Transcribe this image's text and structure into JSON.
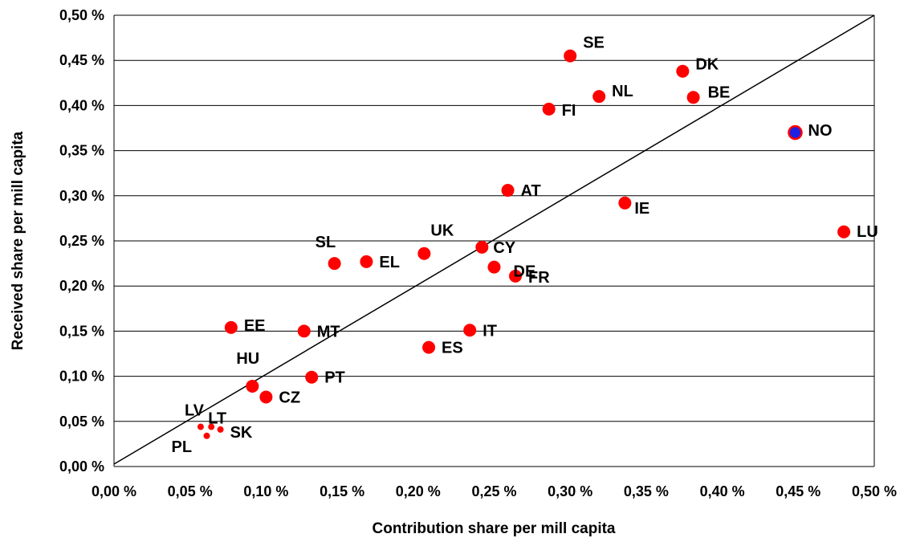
{
  "chart_data": {
    "type": "scatter",
    "title": "",
    "xlabel": "Contribution share per mill capita",
    "ylabel": "Received share per mill capita",
    "xlim": [
      0,
      0.5
    ],
    "ylim": [
      0,
      0.5
    ],
    "x_ticks": [
      "0,00 %",
      "0,05 %",
      "0,10 %",
      "0,15 %",
      "0,20 %",
      "0,25 %",
      "0,30 %",
      "0,35 %",
      "0,40 %",
      "0,45 %",
      "0,50 %"
    ],
    "y_ticks": [
      "0,00 %",
      "0,05 %",
      "0,10 %",
      "0,15 %",
      "0,20 %",
      "0,25 %",
      "0,30 %",
      "0,35 %",
      "0,40 %",
      "0,45 %",
      "0,50 %"
    ],
    "grid": "horizontal",
    "reference_line": {
      "from": [
        0,
        0
      ],
      "to": [
        0.5,
        0.5
      ]
    },
    "colors": {
      "point": "#ff0000",
      "highlight_fill": "#2020e0",
      "highlight_ring": "#ff0000",
      "grid": "#000000"
    },
    "points": [
      {
        "label": "SE",
        "x": 0.3,
        "y": 0.455,
        "size": "large"
      },
      {
        "label": "DK",
        "x": 0.374,
        "y": 0.438,
        "size": "large"
      },
      {
        "label": "NL",
        "x": 0.319,
        "y": 0.41,
        "size": "large"
      },
      {
        "label": "BE",
        "x": 0.381,
        "y": 0.409,
        "size": "large"
      },
      {
        "label": "FI",
        "x": 0.286,
        "y": 0.396,
        "size": "large"
      },
      {
        "label": "NO",
        "x": 0.448,
        "y": 0.37,
        "size": "large",
        "highlight": true
      },
      {
        "label": "AT",
        "x": 0.259,
        "y": 0.306,
        "size": "large"
      },
      {
        "label": "IE",
        "x": 0.336,
        "y": 0.292,
        "size": "large"
      },
      {
        "label": "LU",
        "x": 0.48,
        "y": 0.26,
        "size": "large"
      },
      {
        "label": "UK",
        "x": 0.204,
        "y": 0.236,
        "size": "large"
      },
      {
        "label": "CY",
        "x": 0.242,
        "y": 0.243,
        "size": "large"
      },
      {
        "label": "SL",
        "x": 0.145,
        "y": 0.225,
        "size": "large"
      },
      {
        "label": "EL",
        "x": 0.166,
        "y": 0.227,
        "size": "large"
      },
      {
        "label": "DE",
        "x": 0.25,
        "y": 0.221,
        "size": "large"
      },
      {
        "label": "FR",
        "x": 0.264,
        "y": 0.211,
        "size": "large"
      },
      {
        "label": "EE",
        "x": 0.077,
        "y": 0.154,
        "size": "large"
      },
      {
        "label": "MT",
        "x": 0.125,
        "y": 0.15,
        "size": "large"
      },
      {
        "label": "IT",
        "x": 0.234,
        "y": 0.151,
        "size": "large"
      },
      {
        "label": "ES",
        "x": 0.207,
        "y": 0.132,
        "size": "large"
      },
      {
        "label": "HU",
        "x": 0.091,
        "y": 0.089,
        "size": "large"
      },
      {
        "label": "PT",
        "x": 0.13,
        "y": 0.099,
        "size": "large"
      },
      {
        "label": "CZ",
        "x": 0.1,
        "y": 0.077,
        "size": "large"
      },
      {
        "label": "LV",
        "x": 0.057,
        "y": 0.044,
        "size": "small"
      },
      {
        "label": "LT",
        "x": 0.064,
        "y": 0.044,
        "size": "small"
      },
      {
        "label": "SK",
        "x": 0.07,
        "y": 0.041,
        "size": "small"
      },
      {
        "label": "PL",
        "x": 0.061,
        "y": 0.034,
        "size": "small"
      }
    ]
  }
}
